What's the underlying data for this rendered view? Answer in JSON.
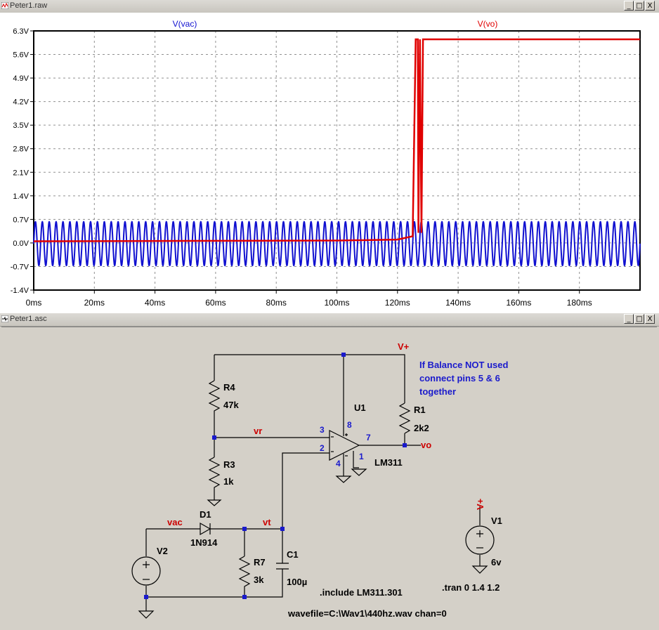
{
  "plot_window": {
    "title": "Peter1.raw",
    "buttons": [
      "_",
      "□",
      "X"
    ]
  },
  "schematic_window": {
    "title": "Peter1.asc",
    "buttons": [
      "_",
      "□",
      "X"
    ]
  },
  "chart_data": {
    "type": "line",
    "x_unit": "ms",
    "xlim": [
      0,
      200
    ],
    "ylim": [
      -1.4,
      6.3
    ],
    "x_ticks": [
      "0ms",
      "20ms",
      "40ms",
      "60ms",
      "80ms",
      "100ms",
      "120ms",
      "140ms",
      "160ms",
      "180ms"
    ],
    "y_ticks": [
      "6.3V",
      "5.6V",
      "4.9V",
      "4.2V",
      "3.5V",
      "2.8V",
      "2.1V",
      "1.4V",
      "0.7V",
      "0.0V",
      "-0.7V",
      "-1.4V"
    ],
    "grid": true,
    "series": [
      {
        "name": "V(vac)",
        "color": "#1010d0",
        "shape": "sine",
        "frequency_hz": 440,
        "amplitude_v": 0.65,
        "offset_v": -0.02
      },
      {
        "name": "V(vo)",
        "color": "#e00000",
        "points": [
          [
            0,
            0.05
          ],
          [
            100,
            0.07
          ],
          [
            120,
            0.1
          ],
          [
            125,
            0.2
          ],
          [
            126,
            6.05
          ],
          [
            126.7,
            6.05
          ],
          [
            126.9,
            0.3
          ],
          [
            127.4,
            6.05
          ],
          [
            127.9,
            0.3
          ],
          [
            128.4,
            6.05
          ],
          [
            200,
            6.05
          ]
        ]
      }
    ]
  },
  "schematic": {
    "colors": {
      "wire": "#000000",
      "net": "#cc0000",
      "pin": "#1a1acc",
      "note": "#1a1acc"
    },
    "net_labels": {
      "vplus": "V+",
      "vr": "vr",
      "vo": "vo",
      "vac": "vac",
      "vt": "vt",
      "v1_top": "V+"
    },
    "components": {
      "r4_name": "R4",
      "r4_value": "47k",
      "r3_name": "R3",
      "r3_value": "1k",
      "r1_name": "R1",
      "r1_value": "2k2",
      "r7_name": "R7",
      "r7_value": "3k",
      "c1_name": "C1",
      "c1_value": "100µ",
      "d1_name": "D1",
      "d1_value": "1N914",
      "u1_name": "U1",
      "u1_value": "LM311",
      "v1_name": "V1",
      "v1_value": "6v",
      "v2_name": "V2"
    },
    "pins": {
      "p8": "8",
      "p3": "3",
      "p2": "2",
      "p7": "7",
      "p4": "4",
      "p1": "1"
    },
    "note_lines": [
      "If Balance NOT used",
      "connect pins 5 & 6",
      "together"
    ],
    "directives": {
      "include": ".include LM311.301",
      "tran": ".tran 0 1.4 1.2",
      "wavefile": "wavefile=C:\\Wav1\\440hz.wav chan=0"
    }
  }
}
